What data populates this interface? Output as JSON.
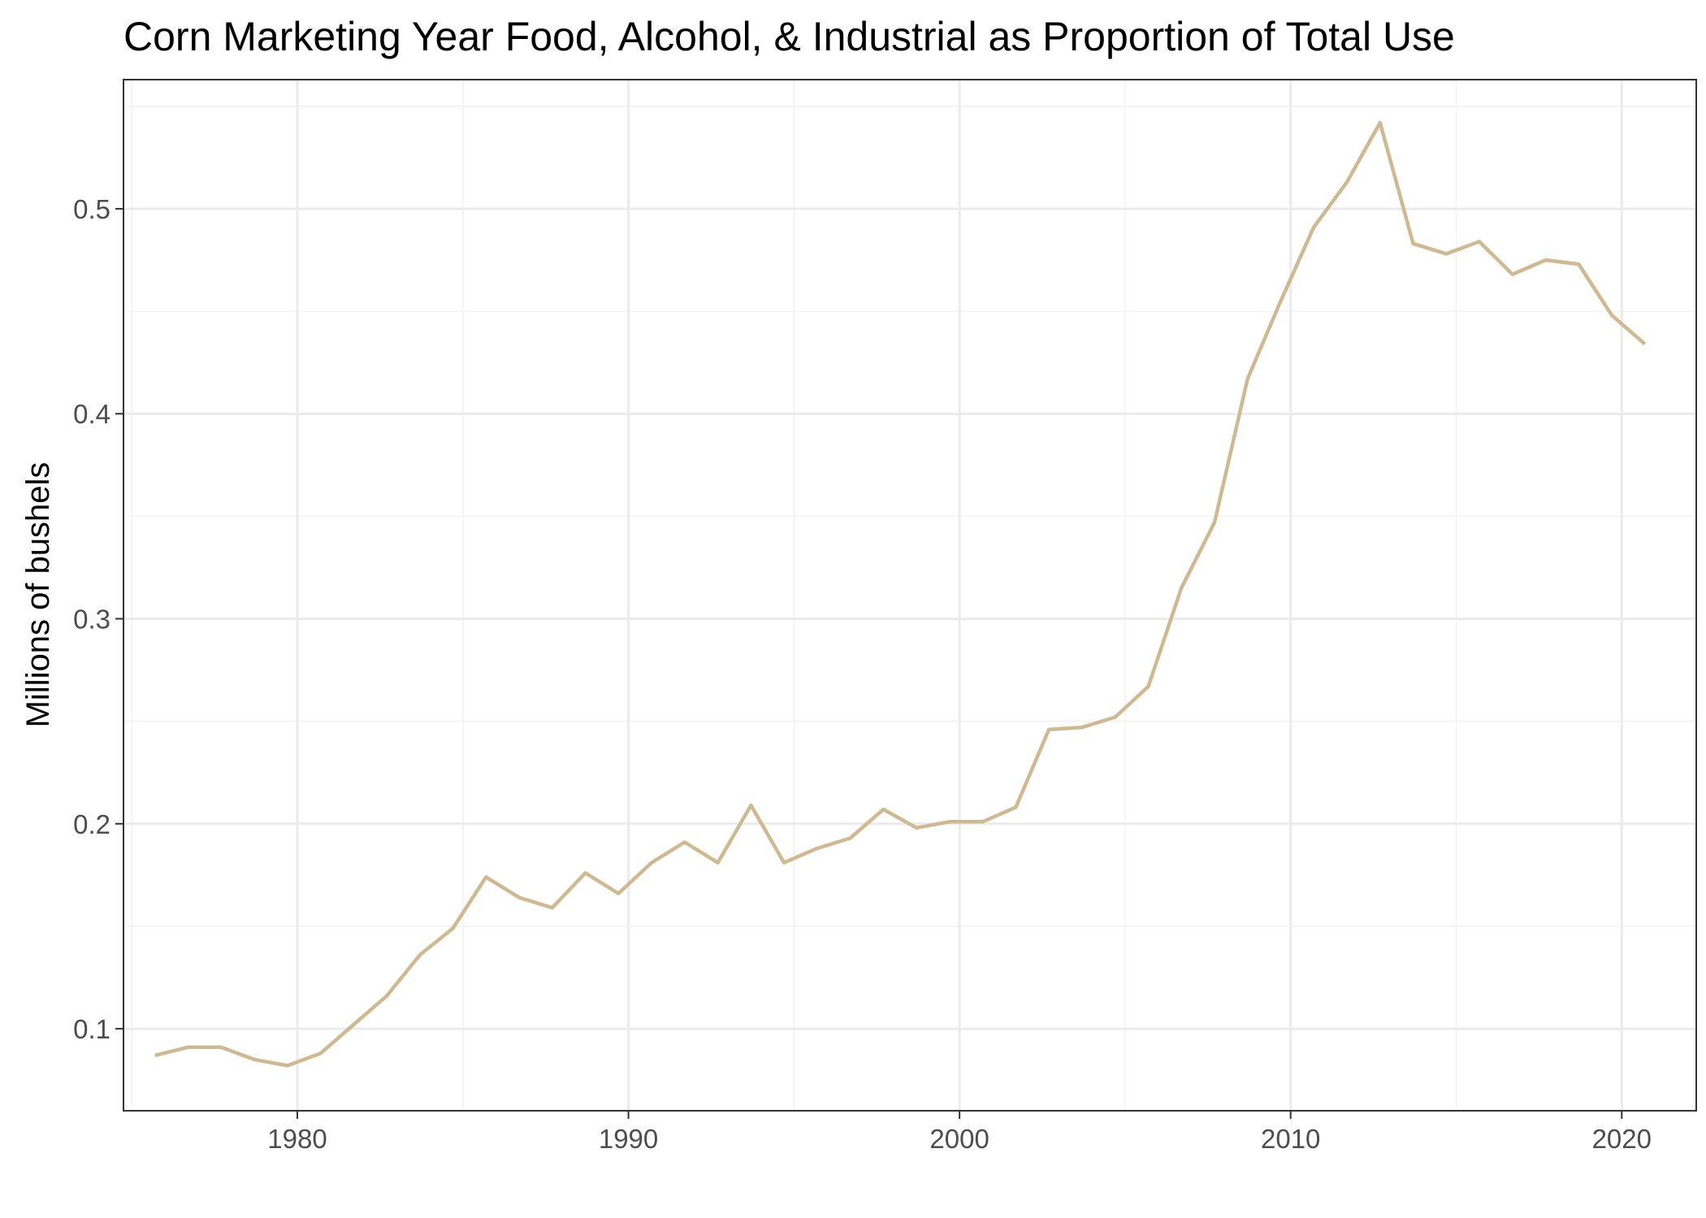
{
  "chart_data": {
    "type": "line",
    "title": "Corn Marketing Year Food, Alcohol, & Industrial as Proportion of Total Use",
    "xlabel": "",
    "ylabel": "Millions of bushels",
    "xlim": [
      1974.75,
      2022.25
    ],
    "ylim": [
      0.06,
      0.563
    ],
    "x_ticks": [
      1980,
      1990,
      2000,
      2010,
      2020
    ],
    "x_tick_labels": [
      "1980",
      "1990",
      "2000",
      "2010",
      "2020"
    ],
    "y_ticks": [
      0.1,
      0.2,
      0.3,
      0.4,
      0.5
    ],
    "y_tick_labels": [
      "0.1",
      "0.2",
      "0.3",
      "0.4",
      "0.5"
    ],
    "grid": true,
    "legend": "none",
    "line_color": "#CFB991",
    "series": [
      {
        "x": [
          1975.7,
          1976.7,
          1977.7,
          1978.7,
          1979.7,
          1980.7,
          1981.7,
          1982.7,
          1983.7,
          1984.7,
          1985.7,
          1986.7,
          1987.7,
          1988.7,
          1989.7,
          1990.7,
          1991.7,
          1992.7,
          1993.7,
          1994.7,
          1995.7,
          1996.7,
          1997.7,
          1998.7,
          1999.7,
          2000.7,
          2001.7,
          2002.7,
          2003.7,
          2004.7,
          2005.7,
          2006.7,
          2007.7,
          2008.7,
          2009.7,
          2010.7,
          2011.7,
          2012.7,
          2013.7,
          2014.7,
          2015.7,
          2016.7,
          2017.7,
          2018.7,
          2019.7,
          2020.7
        ],
        "values": [
          0.087,
          0.091,
          0.091,
          0.085,
          0.082,
          0.088,
          0.102,
          0.116,
          0.136,
          0.149,
          0.174,
          0.164,
          0.159,
          0.176,
          0.166,
          0.181,
          0.191,
          0.181,
          0.209,
          0.181,
          0.188,
          0.193,
          0.207,
          0.198,
          0.201,
          0.201,
          0.208,
          0.246,
          0.247,
          0.252,
          0.267,
          0.315,
          0.347,
          0.417,
          0.455,
          0.491,
          0.513,
          0.542,
          0.483,
          0.478,
          0.484,
          0.468,
          0.475,
          0.473,
          0.448,
          0.434
        ]
      }
    ]
  }
}
